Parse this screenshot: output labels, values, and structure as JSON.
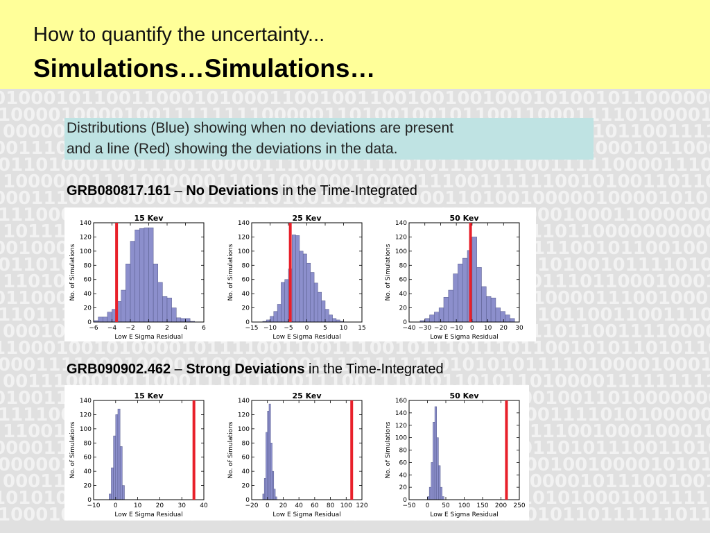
{
  "header": {
    "title_line1": "How to quantify the uncertainty...",
    "title_line2": "Simulations…Simulations…"
  },
  "note": {
    "text_line1": "Distributions (Blue) showing when no deviations are present",
    "text_line2": "and a line (Red) showing the deviations in the data."
  },
  "sections": [
    {
      "grb": "GRB080817.161",
      "dash": " – ",
      "emphasis": "No Deviations",
      "rest": " in the Time-Integrated"
    },
    {
      "grb": "GRB090902.462",
      "dash": " – ",
      "emphasis": "Strong Deviations",
      "rest": " in the Time-Integrated"
    }
  ],
  "colors": {
    "bar": "#8c8fcc",
    "bar_edge": "#555a8a",
    "red_line": "#e8202a",
    "header_bg": "#ffff99",
    "note_bg": "#bfe3e3"
  },
  "chart_data": [
    {
      "type": "bar",
      "group": 0,
      "title": "15 Kev",
      "xlabel": "Low E Sigma Residual",
      "ylabel": "No. of Simulations",
      "xlim": [
        -6,
        6
      ],
      "ylim": [
        0,
        140
      ],
      "xticks": [
        -6,
        -4,
        -2,
        0,
        2,
        4,
        6
      ],
      "yticks": [
        0,
        20,
        40,
        60,
        80,
        100,
        120,
        140
      ],
      "bin_edges": [
        -6,
        -5.5,
        -5,
        -4.5,
        -4,
        -3.5,
        -3,
        -2.5,
        -2,
        -1.5,
        -1,
        -0.5,
        0,
        0.5,
        1,
        1.5,
        2,
        2.5,
        3,
        3.5,
        4,
        4.5,
        5
      ],
      "values": [
        2,
        7,
        7,
        14,
        18,
        29,
        45,
        82,
        114,
        130,
        132,
        133,
        133,
        82,
        56,
        36,
        34,
        20,
        6,
        5,
        5,
        1
      ],
      "red_line_x": -3.5
    },
    {
      "type": "bar",
      "group": 0,
      "title": "25 Kev",
      "xlabel": "Low E Sigma Residual",
      "ylabel": "No. of Simulations",
      "xlim": [
        -15,
        15
      ],
      "ylim": [
        0,
        140
      ],
      "xticks": [
        -15,
        -10,
        -5,
        0,
        5,
        10,
        15
      ],
      "yticks": [
        0,
        20,
        40,
        60,
        80,
        100,
        120,
        140
      ],
      "bin_edges": [
        -12,
        -11,
        -10,
        -9,
        -8,
        -7,
        -6,
        -5,
        -4,
        -3,
        -2,
        -1,
        0,
        1,
        2,
        3,
        4,
        5,
        6,
        7,
        8,
        9,
        10
      ],
      "values": [
        1,
        3,
        8,
        15,
        25,
        56,
        60,
        75,
        123,
        122,
        100,
        96,
        83,
        70,
        55,
        42,
        30,
        18,
        10,
        5,
        3,
        1
      ],
      "red_line_x": -4.5
    },
    {
      "type": "bar",
      "group": 0,
      "title": "50 Kev",
      "xlabel": "Low E Sigma Residual",
      "ylabel": "No. of Simulations",
      "xlim": [
        -40,
        30
      ],
      "ylim": [
        0,
        140
      ],
      "xticks": [
        -40,
        -30,
        -20,
        -10,
        0,
        10,
        20,
        30
      ],
      "yticks": [
        0,
        20,
        40,
        60,
        80,
        100,
        120,
        140
      ],
      "bin_edges": [
        -33,
        -30,
        -27,
        -24,
        -21,
        -18,
        -15,
        -12,
        -9,
        -6,
        -3,
        0,
        3,
        6,
        9,
        12,
        15,
        18,
        21,
        24,
        27
      ],
      "values": [
        2,
        5,
        10,
        14,
        20,
        35,
        45,
        68,
        82,
        90,
        101,
        120,
        77,
        50,
        36,
        34,
        20,
        15,
        10,
        5
      ],
      "red_line_x": -1
    },
    {
      "type": "bar",
      "group": 1,
      "title": "15 Kev",
      "xlabel": "Low E Sigma Residual",
      "ylabel": "No. of Simulations",
      "xlim": [
        -10,
        40
      ],
      "ylim": [
        0,
        140
      ],
      "xticks": [
        -10,
        0,
        10,
        20,
        30,
        40
      ],
      "yticks": [
        0,
        20,
        40,
        60,
        80,
        100,
        120,
        140
      ],
      "bin_edges": [
        -3,
        -2,
        -1,
        0,
        1,
        2,
        3,
        4
      ],
      "values": [
        8,
        45,
        90,
        120,
        128,
        75,
        20
      ],
      "red_line_x": 35.5
    },
    {
      "type": "bar",
      "group": 1,
      "title": "25 Kev",
      "xlabel": "Low E Sigma Residual",
      "ylabel": "No. of Simulations",
      "xlim": [
        -20,
        120
      ],
      "ylim": [
        0,
        140
      ],
      "xticks": [
        -20,
        0,
        20,
        40,
        60,
        80,
        100,
        120
      ],
      "yticks": [
        0,
        20,
        40,
        60,
        80,
        100,
        120,
        140
      ],
      "bin_edges": [
        -6,
        -4,
        -2,
        0,
        2,
        4,
        6,
        8,
        10,
        12
      ],
      "values": [
        8,
        30,
        95,
        125,
        135,
        80,
        40,
        15,
        4
      ],
      "red_line_x": 107
    },
    {
      "type": "bar",
      "group": 1,
      "title": "50 Kev",
      "xlabel": "Low E Sigma Residual",
      "ylabel": "No. of Simulations",
      "xlim": [
        -50,
        250
      ],
      "ylim": [
        0,
        160
      ],
      "xticks": [
        -50,
        0,
        50,
        100,
        150,
        200,
        250
      ],
      "yticks": [
        0,
        20,
        40,
        60,
        80,
        100,
        120,
        140,
        160
      ],
      "bin_edges": [
        0,
        5,
        10,
        15,
        20,
        25,
        30,
        35,
        40,
        45
      ],
      "values": [
        5,
        20,
        60,
        125,
        150,
        100,
        55,
        20,
        5
      ],
      "red_line_x": 215
    }
  ]
}
